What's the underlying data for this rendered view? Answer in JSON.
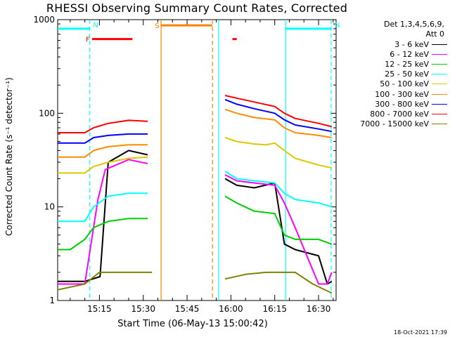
{
  "chart_data": {
    "type": "line",
    "title": "RHESSI Observing Summary Count Rates, Corrected",
    "xlabel": "Start Time (06-May-13 15:00:42)",
    "ylabel": "Corrected Count Rate (s⁻¹ detector⁻¹)",
    "y_scale": "log",
    "ylim": [
      1,
      1000
    ],
    "xlim_minutes": [
      0.7,
      96
    ],
    "x_ticks": [
      {
        "label": "15:15",
        "minute": 15
      },
      {
        "label": "15:30",
        "minute": 30
      },
      {
        "label": "15:45",
        "minute": 45
      },
      {
        "label": "16:00",
        "minute": 60
      },
      {
        "label": "16:15",
        "minute": 75
      },
      {
        "label": "16:30",
        "minute": 90
      }
    ],
    "y_ticks": [
      {
        "label": "1",
        "value": 1
      },
      {
        "label": "10",
        "value": 10
      },
      {
        "label": "100",
        "value": 100
      },
      {
        "label": "1000",
        "value": 1000
      }
    ],
    "legend_header": [
      "Det 1,3,4,5,6,9,",
      "Att 0"
    ],
    "series": [
      {
        "name": "3 - 6 keV",
        "color": "#000000",
        "x": [
          0.7,
          10,
          15.2,
          18,
          25,
          31.5,
          55,
          58,
          62,
          68,
          75,
          78.3,
          82,
          90,
          93,
          94.5
        ],
        "y": [
          1.6,
          1.6,
          1.8,
          30,
          40,
          36,
          null,
          20,
          17,
          16,
          18,
          4,
          3.5,
          3,
          1.5,
          1.6
        ]
      },
      {
        "name": "6 - 12 keV",
        "color": "#ff00ff",
        "x": [
          0.7,
          10,
          14.5,
          17,
          25,
          31.5,
          55,
          58,
          62,
          68,
          75,
          78.3,
          82,
          90,
          93,
          94.5
        ],
        "y": [
          1.5,
          1.5,
          12,
          25,
          32,
          29,
          null,
          22,
          19,
          18,
          17,
          11,
          6,
          1.5,
          1.5,
          2
        ]
      },
      {
        "name": "12 - 25 keV",
        "color": "#00cc00",
        "x": [
          0.7,
          5,
          10,
          13,
          18,
          25,
          31.5,
          55,
          58,
          62,
          68,
          75,
          78.3,
          82,
          90,
          94.5
        ],
        "y": [
          3.5,
          3.5,
          4.5,
          6,
          7,
          7.5,
          7.5,
          null,
          13,
          11,
          9,
          8.5,
          5,
          4.5,
          4.5,
          4
        ]
      },
      {
        "name": "25 - 50 keV",
        "color": "#00ffff",
        "x": [
          0.7,
          10,
          13,
          18,
          25,
          31.5,
          55,
          58,
          62,
          68,
          75,
          78.3,
          82,
          90,
          94.5
        ],
        "y": [
          7,
          7,
          10,
          13,
          14,
          14,
          null,
          24,
          20,
          19,
          18,
          14,
          12,
          11,
          10
        ]
      },
      {
        "name": "50 - 100 keV",
        "color": "#dcc800",
        "x": [
          0.7,
          10,
          13,
          18,
          25,
          31.5,
          55,
          58,
          62,
          68,
          72,
          75,
          78.3,
          82,
          90,
          94.5
        ],
        "y": [
          23,
          23,
          27,
          30,
          33,
          34,
          null,
          55,
          50,
          47,
          46,
          48,
          40,
          33,
          28,
          26
        ]
      },
      {
        "name": "100 - 300 keV",
        "color": "#ff8c00",
        "x": [
          0.7,
          10,
          13,
          18,
          25,
          31.5,
          55,
          58,
          62,
          68,
          75,
          78.3,
          82,
          90,
          94.5
        ],
        "y": [
          34,
          34,
          40,
          44,
          46,
          46,
          null,
          110,
          100,
          90,
          85,
          70,
          62,
          58,
          55
        ]
      },
      {
        "name": "300 - 800 keV",
        "color": "#0000ff",
        "x": [
          0.7,
          10,
          13,
          18,
          25,
          31.5,
          55,
          58,
          62,
          68,
          75,
          78.3,
          82,
          90,
          94.5
        ],
        "y": [
          48,
          48,
          55,
          58,
          60,
          60,
          null,
          140,
          125,
          112,
          100,
          85,
          75,
          68,
          64
        ]
      },
      {
        "name": "800 - 7000 keV",
        "color": "#ff0000",
        "x": [
          0.7,
          10,
          13,
          18,
          25,
          31.5,
          55,
          58,
          62,
          68,
          75,
          78.3,
          82,
          90,
          94.5
        ],
        "y": [
          62,
          62,
          70,
          78,
          84,
          82,
          null,
          155,
          145,
          132,
          118,
          100,
          88,
          78,
          72
        ]
      },
      {
        "name": "7000 - 15000 keV",
        "color": "#808000",
        "x": [
          0.7,
          10,
          15,
          20,
          30,
          33,
          55,
          58,
          65,
          72,
          78,
          82,
          88,
          94.5
        ],
        "y": [
          1.3,
          1.5,
          2,
          2,
          2,
          2,
          null,
          1.7,
          1.9,
          2,
          2,
          2,
          1.5,
          1.2
        ]
      }
    ],
    "flags": [
      {
        "label": "N",
        "color": "#00ffff",
        "x_start": 0.7,
        "x_end": 11.8,
        "level": 800
      },
      {
        "label": "N",
        "color": "#00ffff",
        "x_start": 78.6,
        "x_end": 94.5,
        "level": 800
      },
      {
        "label": "F",
        "color": "#ff0000",
        "x_start": 12.5,
        "x_end": 26.3,
        "level": 620
      },
      {
        "label": "",
        "color": "#ff0000",
        "x_start": 60.5,
        "x_end": 62,
        "level": 620
      },
      {
        "label": "S",
        "color": "#ff8000",
        "x_start": 36.2,
        "x_end": 53.6,
        "level": 870
      }
    ],
    "vertical_markers": [
      {
        "minute": 11.7,
        "color": "#00ffff",
        "style": "dashed"
      },
      {
        "minute": 36.1,
        "color": "#ff8000",
        "style": "solid"
      },
      {
        "minute": 53.7,
        "color": "#ff8000",
        "style": "dashed"
      },
      {
        "minute": 55.8,
        "color": "#00ffff",
        "style": "solid"
      },
      {
        "minute": 78.7,
        "color": "#00ffff",
        "style": "solid"
      },
      {
        "minute": 94.3,
        "color": "#00ffff",
        "style": "dashed"
      }
    ],
    "legend_placement": "right"
  },
  "footer": {
    "timestamp": "18-Oct-2021 17:39"
  }
}
